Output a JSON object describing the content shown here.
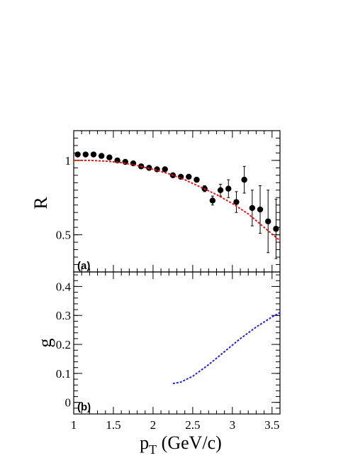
{
  "chart_data": [
    {
      "type": "scatter",
      "panel_label": "(a)",
      "ylabel": "R",
      "xlabel": "",
      "xlim": [
        1.0,
        3.6
      ],
      "ylim": [
        0.25,
        1.2
      ],
      "y_ticks": [
        "0.5",
        "1"
      ],
      "y_tick_values": [
        0.5,
        1.0
      ],
      "grid": false,
      "series": [
        {
          "style": "markers-with-error-bars",
          "color": "#000000",
          "x": [
            1.05,
            1.15,
            1.25,
            1.35,
            1.45,
            1.55,
            1.65,
            1.75,
            1.85,
            1.95,
            2.05,
            2.15,
            2.25,
            2.35,
            2.45,
            2.55,
            2.65,
            2.75,
            2.85,
            2.95,
            3.05,
            3.15,
            3.25,
            3.35,
            3.45,
            3.55
          ],
          "y": [
            1.04,
            1.04,
            1.04,
            1.03,
            1.02,
            1.0,
            0.99,
            0.98,
            0.96,
            0.95,
            0.94,
            0.94,
            0.9,
            0.89,
            0.89,
            0.87,
            0.81,
            0.73,
            0.8,
            0.81,
            0.72,
            0.87,
            0.68,
            0.67,
            0.59,
            0.54
          ],
          "yerr": [
            0.005,
            0.005,
            0.005,
            0.005,
            0.005,
            0.005,
            0.005,
            0.005,
            0.005,
            0.005,
            0.005,
            0.005,
            0.006,
            0.008,
            0.01,
            0.015,
            0.02,
            0.03,
            0.04,
            0.06,
            0.07,
            0.09,
            0.12,
            0.16,
            0.21,
            0.2
          ]
        },
        {
          "style": "dashed-line",
          "color": "#ee1111",
          "x": [
            1.0,
            1.2,
            1.4,
            1.6,
            1.8,
            2.0,
            2.2,
            2.4,
            2.6,
            2.8,
            3.0,
            3.2,
            3.4,
            3.6
          ],
          "y": [
            1.0,
            1.0,
            0.995,
            0.985,
            0.965,
            0.94,
            0.91,
            0.87,
            0.82,
            0.77,
            0.71,
            0.64,
            0.55,
            0.46
          ]
        }
      ]
    },
    {
      "type": "line",
      "panel_label": "(b)",
      "ylabel": "g",
      "xlabel": "p_T (GeV/c)",
      "xlim": [
        1.0,
        3.6
      ],
      "ylim": [
        -0.04,
        0.45
      ],
      "x_ticks": [
        "1",
        "1.5",
        "2",
        "2.5",
        "3",
        "3.5"
      ],
      "x_tick_values": [
        1.0,
        1.5,
        2.0,
        2.5,
        3.0,
        3.5
      ],
      "y_ticks": [
        "0",
        "0.1",
        "0.2",
        "0.3",
        "0.4"
      ],
      "y_tick_values": [
        0.0,
        0.1,
        0.2,
        0.3,
        0.4
      ],
      "grid": false,
      "series": [
        {
          "style": "dashed-line",
          "color": "#2222dd",
          "x": [
            2.25,
            2.35,
            2.5,
            2.7,
            2.9,
            3.1,
            3.3,
            3.5,
            3.6
          ],
          "y": [
            0.065,
            0.07,
            0.09,
            0.13,
            0.175,
            0.22,
            0.26,
            0.295,
            0.31
          ]
        }
      ]
    }
  ],
  "labels": {
    "ylabel_top": "R",
    "ylabel_bottom": "g",
    "xlabel_main": "p",
    "xlabel_sub": "T",
    "xlabel_unit": " (GeV/c)",
    "panel_a": "(a)",
    "panel_b": "(b)"
  }
}
